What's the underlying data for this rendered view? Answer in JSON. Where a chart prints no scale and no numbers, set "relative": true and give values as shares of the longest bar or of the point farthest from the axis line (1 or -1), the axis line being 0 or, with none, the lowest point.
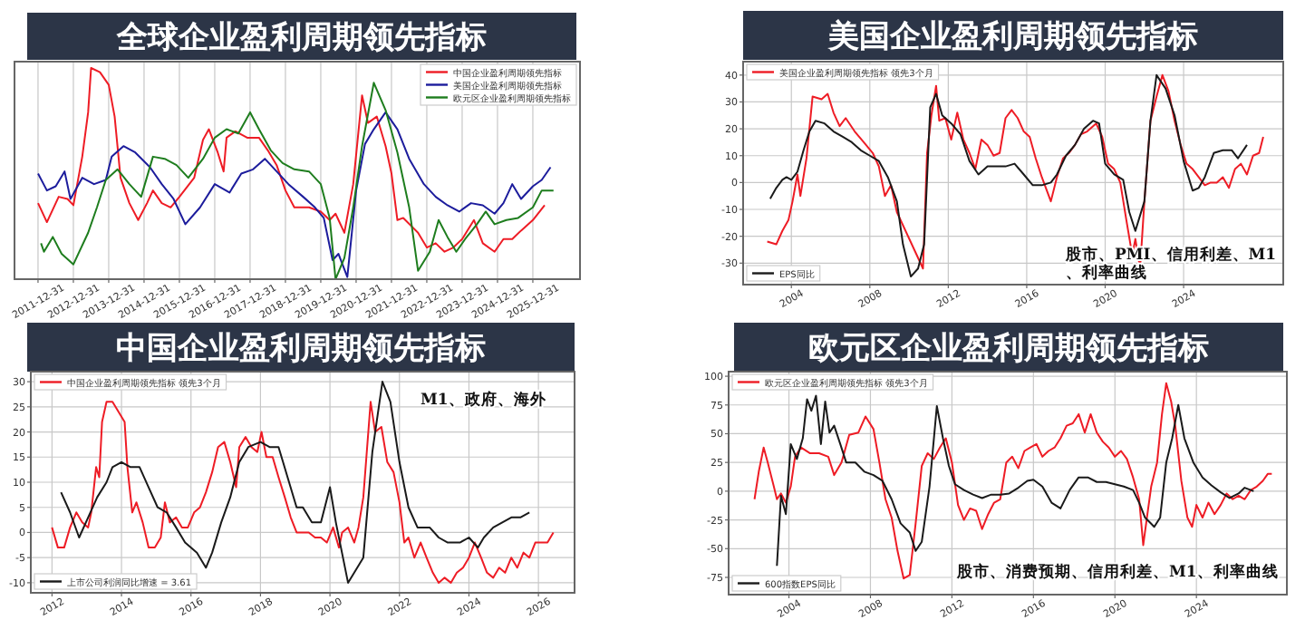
{
  "chart_data": [
    {
      "type": "line",
      "title": "全球企业盈利周期领先指标",
      "relative": true,
      "grid": "x",
      "legend": "top right",
      "xlim": [
        "2011-05",
        "2027-05"
      ],
      "xticks": [
        "2011-12-31",
        "2012-12-31",
        "2013-12-31",
        "2014-12-31",
        "2015-12-31",
        "2016-12-31",
        "2017-12-31",
        "2018-12-31",
        "2019-12-31",
        "2020-12-31",
        "2021-12-31",
        "2022-12-31",
        "2023-12-31",
        "2024-12-31",
        "2025-12-31"
      ],
      "series": [
        {
          "name": "中国企业盈利周期领先指标",
          "color": "#ee1c25",
          "x": [
            "2012-01",
            "2012-04",
            "2012-08",
            "2012-11",
            "2013-01",
            "2013-04",
            "2013-06",
            "2013-07",
            "2013-10",
            "2014-01",
            "2014-03",
            "2014-05",
            "2014-08",
            "2014-11",
            "2015-02",
            "2015-04",
            "2015-07",
            "2015-10",
            "2016-01",
            "2016-06",
            "2016-09",
            "2016-11",
            "2017-02",
            "2017-04",
            "2017-05",
            "2017-08",
            "2017-12",
            "2018-04",
            "2018-07",
            "2018-10",
            "2019-01",
            "2019-04",
            "2019-09",
            "2020-01",
            "2020-04",
            "2020-06",
            "2020-09",
            "2020-12",
            "2021-03",
            "2021-05",
            "2021-08",
            "2021-11",
            "2022-01",
            "2022-03",
            "2022-05",
            "2022-10",
            "2023-01",
            "2023-04",
            "2023-07",
            "2023-10",
            "2024-01",
            "2024-05",
            "2024-08",
            "2024-12",
            "2025-03",
            "2025-06",
            "2025-09",
            "2026-01",
            "2026-05"
          ],
          "values": [
            0.36,
            0.27,
            0.39,
            0.38,
            0.35,
            0.58,
            0.79,
            1.0,
            0.98,
            0.92,
            0.77,
            0.48,
            0.36,
            0.28,
            0.36,
            0.42,
            0.36,
            0.34,
            0.39,
            0.48,
            0.66,
            0.71,
            0.6,
            0.51,
            0.67,
            0.7,
            0.67,
            0.67,
            0.61,
            0.54,
            0.42,
            0.34,
            0.34,
            0.32,
            0.28,
            0.31,
            0.22,
            0.45,
            0.87,
            0.74,
            0.77,
            0.63,
            0.5,
            0.28,
            0.29,
            0.22,
            0.15,
            0.17,
            0.13,
            0.15,
            0.19,
            0.28,
            0.17,
            0.13,
            0.19,
            0.19,
            0.23,
            0.28,
            0.35
          ]
        },
        {
          "name": "美国企业盈利周期领先指标",
          "color": "#1c1c9c",
          "x": [
            "2012-01",
            "2012-04",
            "2012-07",
            "2012-10",
            "2012-12",
            "2013-04",
            "2013-08",
            "2013-12",
            "2014-02",
            "2014-06",
            "2014-10",
            "2015-03",
            "2015-07",
            "2015-11",
            "2016-03",
            "2016-08",
            "2017-01",
            "2017-06",
            "2017-10",
            "2018-02",
            "2018-06",
            "2018-10",
            "2019-02",
            "2019-07",
            "2019-11",
            "2020-02",
            "2020-05",
            "2020-07",
            "2020-10",
            "2021-01",
            "2021-04",
            "2021-07",
            "2021-11",
            "2022-03",
            "2022-07",
            "2022-12",
            "2023-04",
            "2023-08",
            "2023-12",
            "2024-04",
            "2024-08",
            "2024-12",
            "2025-03",
            "2025-06",
            "2025-09",
            "2026-01",
            "2026-04",
            "2026-07"
          ],
          "values": [
            0.5,
            0.42,
            0.44,
            0.51,
            0.38,
            0.48,
            0.45,
            0.47,
            0.58,
            0.63,
            0.6,
            0.53,
            0.45,
            0.38,
            0.26,
            0.34,
            0.45,
            0.41,
            0.5,
            0.52,
            0.57,
            0.51,
            0.45,
            0.39,
            0.34,
            0.29,
            0.09,
            0.12,
            0.01,
            0.42,
            0.64,
            0.71,
            0.79,
            0.71,
            0.57,
            0.45,
            0.39,
            0.35,
            0.32,
            0.36,
            0.35,
            0.31,
            0.36,
            0.45,
            0.38,
            0.44,
            0.47,
            0.53
          ]
        },
        {
          "name": "欧元区企业盈利周期领先指标",
          "color": "#1e7d1e",
          "x": [
            "2012-02",
            "2012-03",
            "2012-06",
            "2012-09",
            "2013-01",
            "2013-06",
            "2013-09",
            "2013-12",
            "2014-04",
            "2014-08",
            "2014-12",
            "2015-04",
            "2015-08",
            "2015-12",
            "2016-04",
            "2016-09",
            "2017-01",
            "2017-05",
            "2017-09",
            "2018-01",
            "2018-04",
            "2018-08",
            "2018-12",
            "2019-04",
            "2019-09",
            "2020-01",
            "2020-04",
            "2020-06",
            "2020-09",
            "2020-12",
            "2021-03",
            "2021-07",
            "2021-11",
            "2022-03",
            "2022-07",
            "2022-10",
            "2023-02",
            "2023-05",
            "2023-08",
            "2023-11",
            "2024-02",
            "2024-06",
            "2024-09",
            "2024-12",
            "2025-04",
            "2025-08",
            "2026-01",
            "2026-04",
            "2026-08"
          ],
          "values": [
            0.17,
            0.13,
            0.2,
            0.12,
            0.07,
            0.22,
            0.34,
            0.47,
            0.52,
            0.45,
            0.39,
            0.58,
            0.57,
            0.54,
            0.48,
            0.57,
            0.67,
            0.71,
            0.69,
            0.79,
            0.71,
            0.61,
            0.55,
            0.52,
            0.51,
            0.45,
            0.29,
            0.0,
            0.1,
            0.34,
            0.63,
            0.93,
            0.8,
            0.6,
            0.34,
            0.04,
            0.13,
            0.28,
            0.2,
            0.13,
            0.19,
            0.26,
            0.32,
            0.26,
            0.28,
            0.29,
            0.34,
            0.42,
            0.42
          ]
        }
      ]
    },
    {
      "type": "line",
      "title": "美国企业盈利周期领先指标",
      "grid": true,
      "legend": "left",
      "xlim": [
        2001.54,
        2029.08
      ],
      "ylim": [
        -38,
        45
      ],
      "xticks": [
        2004,
        2008,
        2012,
        2016,
        2020,
        2024
      ],
      "yticks": [
        -30,
        -20,
        -10,
        0,
        10,
        20,
        30,
        40
      ],
      "annotations": [
        "股市、PMI、信用利差、M1、利率曲线"
      ],
      "series": [
        {
          "name": "美国企业盈利周期领先指标 领先3个月",
          "color": "#ee1c25",
          "x": [
            2002.77,
            2003.23,
            2003.54,
            2003.85,
            2004.06,
            2004.31,
            2004.46,
            2004.77,
            2005.08,
            2005.54,
            2005.85,
            2006.15,
            2006.46,
            2006.77,
            2007.23,
            2007.69,
            2008.15,
            2008.46,
            2008.77,
            2009.08,
            2009.38,
            2010.71,
            2010.92,
            2011.14,
            2011.38,
            2011.54,
            2011.85,
            2012.15,
            2012.46,
            2012.77,
            2013.08,
            2013.38,
            2013.69,
            2014.0,
            2014.31,
            2014.62,
            2014.92,
            2015.23,
            2015.54,
            2015.85,
            2016.15,
            2016.46,
            2016.77,
            2017.23,
            2017.54,
            2017.85,
            2018.15,
            2018.46,
            2018.77,
            2019.08,
            2019.54,
            2019.85,
            2020.15,
            2020.46,
            2020.77,
            2021.08,
            2021.38,
            2021.54,
            2021.78,
            2022.0,
            2022.31,
            2022.62,
            2022.92,
            2023.23,
            2023.54,
            2023.85,
            2024.15,
            2024.46,
            2024.77,
            2025.08,
            2025.38,
            2025.69,
            2026.0,
            2026.31,
            2026.62,
            2026.92,
            2027.23,
            2027.54,
            2027.85,
            2028.06
          ],
          "values": [
            -22,
            -23,
            -18,
            -14,
            -7,
            3,
            -5,
            9,
            32,
            31,
            33,
            26,
            21,
            24,
            19,
            15,
            11,
            6,
            -5,
            -1,
            -11,
            -32,
            11,
            25,
            36,
            23,
            24,
            16,
            26,
            16,
            11,
            5,
            16,
            14,
            10,
            11,
            24,
            27,
            24,
            19,
            17,
            9,
            2,
            -7,
            2,
            9,
            11,
            14,
            18,
            19,
            22,
            17,
            7,
            5,
            0,
            -14,
            -27,
            -21,
            -32,
            -7,
            23,
            32,
            40,
            34,
            23,
            14,
            7,
            5,
            2,
            -1,
            0,
            0,
            2,
            -2,
            5,
            7,
            3,
            10,
            11,
            17
          ]
        },
        {
          "name": "EPS同比",
          "color": "#1a1a1a",
          "x": [
            2002.92,
            2003.23,
            2003.54,
            2003.75,
            2004.0,
            2004.31,
            2004.62,
            2004.92,
            2005.23,
            2005.69,
            2006.15,
            2006.62,
            2007.08,
            2007.54,
            2008.0,
            2008.46,
            2008.92,
            2009.38,
            2009.69,
            2010.09,
            2010.46,
            2010.77,
            2011.08,
            2011.38,
            2011.69,
            2012.15,
            2012.62,
            2013.08,
            2013.54,
            2014.0,
            2014.46,
            2014.92,
            2015.38,
            2015.85,
            2016.31,
            2016.77,
            2017.23,
            2017.54,
            2018.0,
            2018.46,
            2018.92,
            2019.38,
            2019.69,
            2020.0,
            2020.46,
            2020.92,
            2021.23,
            2021.54,
            2022.0,
            2022.31,
            2022.62,
            2023.08,
            2023.54,
            2024.0,
            2024.46,
            2024.77,
            2025.08,
            2025.54,
            2026.0,
            2026.46,
            2026.77,
            2027.23
          ],
          "values": [
            -6,
            -2,
            1,
            2,
            1,
            4,
            12,
            19,
            23,
            22,
            19,
            17,
            15,
            12,
            10,
            8,
            2,
            -7,
            -23,
            -35,
            -32,
            -23,
            28,
            33,
            25,
            22,
            18,
            8,
            3,
            6,
            6,
            6,
            7,
            3,
            -1,
            -1,
            0,
            3,
            10,
            14,
            20,
            23,
            22,
            7,
            3,
            1,
            -11,
            -18,
            -7,
            23,
            40,
            35,
            25,
            8,
            -3,
            -2,
            2,
            11,
            12,
            12,
            9,
            14
          ]
        }
      ]
    },
    {
      "type": "line",
      "title": "中国企业盈利周期领先指标",
      "grid": true,
      "legend": "left",
      "xlim": [
        2011.39,
        2027.04
      ],
      "ylim": [
        -12,
        32
      ],
      "xticks": [
        2012,
        2014,
        2016,
        2018,
        2020,
        2022,
        2024,
        2026
      ],
      "yticks": [
        -10,
        -5,
        0,
        5,
        10,
        15,
        20,
        25,
        30
      ],
      "annotations": [
        "M1、政府、海外"
      ],
      "series": [
        {
          "name": "中国企业盈利周期领先指标 领先3个月",
          "color": "#ee1c25",
          "x": [
            2012.0,
            2012.17,
            2012.35,
            2012.52,
            2012.7,
            2012.87,
            2013.04,
            2013.13,
            2013.27,
            2013.36,
            2013.44,
            2013.57,
            2013.74,
            2014.09,
            2014.17,
            2014.31,
            2014.43,
            2014.61,
            2014.78,
            2014.96,
            2015.13,
            2015.25,
            2015.39,
            2015.57,
            2015.74,
            2015.91,
            2016.09,
            2016.26,
            2016.43,
            2016.61,
            2016.78,
            2016.96,
            2017.13,
            2017.3,
            2017.39,
            2017.57,
            2017.74,
            2017.91,
            2018.03,
            2018.17,
            2018.35,
            2018.52,
            2018.7,
            2018.87,
            2019.04,
            2019.22,
            2019.39,
            2019.57,
            2019.74,
            2019.91,
            2020.09,
            2020.26,
            2020.35,
            2020.52,
            2020.7,
            2020.82,
            2020.96,
            2021.17,
            2021.3,
            2021.48,
            2021.65,
            2021.83,
            2022.0,
            2022.14,
            2022.26,
            2022.43,
            2022.61,
            2022.78,
            2022.96,
            2023.13,
            2023.3,
            2023.48,
            2023.65,
            2023.83,
            2024.0,
            2024.17,
            2024.35,
            2024.52,
            2024.7,
            2024.87,
            2025.04,
            2025.22,
            2025.39,
            2025.57,
            2025.74,
            2025.91,
            2026.09,
            2026.26,
            2026.43
          ],
          "values": [
            1,
            -3,
            -3,
            1,
            4,
            2,
            1,
            4,
            13,
            11,
            22,
            26,
            26,
            22,
            13,
            4,
            6,
            2,
            -3,
            -3,
            -1,
            6,
            2,
            3,
            1,
            1,
            4,
            5,
            8,
            12,
            17,
            18,
            14,
            9,
            17,
            19,
            17,
            16,
            20,
            15,
            15,
            11,
            7,
            3,
            0,
            0,
            0,
            -1,
            -1,
            -2,
            1,
            -3,
            0,
            1,
            -2,
            1,
            7,
            26,
            20,
            21,
            14,
            12,
            6,
            -2,
            -1,
            -5,
            -2,
            -5,
            -8,
            -10,
            -9,
            -10,
            -8,
            -7,
            -5,
            -2,
            -5,
            -8,
            -9,
            -7,
            -8,
            -5,
            -7,
            -4,
            -5,
            -2,
            -2,
            -2,
            0
          ]
        },
        {
          "name": "上市公司利润同比增速 = 3.61",
          "color": "#1a1a1a",
          "x": [
            2012.26,
            2012.52,
            2012.78,
            2013.04,
            2013.3,
            2013.57,
            2013.74,
            2014.0,
            2014.26,
            2014.52,
            2014.78,
            2015.04,
            2015.3,
            2015.57,
            2015.83,
            2016.17,
            2016.43,
            2016.61,
            2016.87,
            2017.13,
            2017.39,
            2017.65,
            2018.0,
            2018.26,
            2018.52,
            2018.78,
            2019.04,
            2019.22,
            2019.48,
            2019.74,
            2020.0,
            2020.17,
            2020.52,
            2020.96,
            2021.22,
            2021.51,
            2021.74,
            2022.0,
            2022.26,
            2022.52,
            2022.87,
            2023.13,
            2023.39,
            2023.74,
            2024.0,
            2024.26,
            2024.43,
            2024.7,
            2024.96,
            2025.22,
            2025.48,
            2025.74
          ],
          "values": [
            8,
            4,
            -1,
            3,
            7,
            10,
            13,
            14,
            13,
            13,
            9,
            5,
            4,
            1,
            -2,
            -4,
            -7,
            -4,
            2,
            7,
            14,
            17,
            18,
            17,
            17,
            11,
            5,
            5,
            2,
            2,
            9,
            2,
            -10,
            -5,
            16,
            30,
            26,
            14,
            5,
            1,
            1,
            -1,
            -2,
            -2,
            -1,
            -3,
            -1,
            1,
            2,
            3,
            3,
            4
          ]
        }
      ]
    },
    {
      "type": "line",
      "title": "欧元区企业盈利周期领先指标",
      "grid": true,
      "legend": "left",
      "xlim": [
        2001.04,
        2028.44
      ],
      "ylim": [
        -90,
        104
      ],
      "xticks": [
        2004,
        2008,
        2012,
        2016,
        2020,
        2024
      ],
      "yticks": [
        -75,
        -50,
        -25,
        0,
        25,
        50,
        75,
        100
      ],
      "annotations": [
        "股市、消费预期、信用利差、M1、利率曲线"
      ],
      "series": [
        {
          "name": "欧元区企业盈利周期领先指标 领先3个月",
          "color": "#ee1c25",
          "x": [
            2002.31,
            2002.52,
            2002.76,
            2002.96,
            2003.26,
            2003.41,
            2003.61,
            2003.85,
            2004.09,
            2004.3,
            2004.59,
            2005.04,
            2005.48,
            2005.93,
            2006.22,
            2006.58,
            2006.96,
            2007.41,
            2007.76,
            2008.15,
            2008.44,
            2008.74,
            2009.04,
            2009.33,
            2009.63,
            2009.93,
            2010.22,
            2010.52,
            2010.81,
            2011.11,
            2011.41,
            2011.7,
            2012.0,
            2012.3,
            2012.59,
            2012.89,
            2013.19,
            2013.48,
            2013.78,
            2014.07,
            2014.37,
            2014.67,
            2014.96,
            2015.26,
            2015.56,
            2015.85,
            2016.15,
            2016.44,
            2016.74,
            2017.04,
            2017.33,
            2017.63,
            2017.93,
            2018.22,
            2018.52,
            2018.81,
            2019.11,
            2019.41,
            2019.7,
            2020.0,
            2020.3,
            2020.59,
            2020.89,
            2021.19,
            2021.39,
            2021.57,
            2021.78,
            2022.07,
            2022.31,
            2022.52,
            2022.76,
            2022.96,
            2023.26,
            2023.56,
            2023.79,
            2024.0,
            2024.3,
            2024.59,
            2024.89,
            2025.19,
            2025.48,
            2025.78,
            2026.07,
            2026.37,
            2026.67,
            2026.96,
            2027.26,
            2027.5,
            2027.7
          ],
          "values": [
            -7,
            17,
            38,
            25,
            4,
            -7,
            -2,
            -10,
            4,
            30,
            38,
            33,
            33,
            30,
            14,
            25,
            49,
            51,
            65,
            54,
            25,
            -7,
            -23,
            -52,
            -76,
            -73,
            -28,
            22,
            33,
            28,
            38,
            46,
            25,
            -12,
            -25,
            -15,
            -17,
            -33,
            -20,
            -10,
            -7,
            25,
            30,
            20,
            35,
            38,
            41,
            30,
            35,
            38,
            46,
            57,
            59,
            67,
            51,
            67,
            51,
            43,
            38,
            30,
            35,
            28,
            12,
            -7,
            -47,
            -23,
            4,
            25,
            67,
            94,
            78,
            57,
            9,
            -23,
            -31,
            -12,
            -23,
            -10,
            -20,
            -12,
            -2,
            -7,
            -4,
            -7,
            1,
            4,
            9,
            15,
            15
          ]
        },
        {
          "name": "600指数EPS同比",
          "color": "#1a1a1a",
          "x": [
            2003.41,
            2003.61,
            2003.85,
            2004.09,
            2004.39,
            2004.68,
            2004.89,
            2005.1,
            2005.33,
            2005.57,
            2005.78,
            2005.99,
            2006.22,
            2006.52,
            2006.81,
            2007.26,
            2007.7,
            2008.15,
            2008.59,
            2009.04,
            2009.48,
            2009.93,
            2010.22,
            2010.52,
            2010.9,
            2011.26,
            2011.56,
            2011.85,
            2012.15,
            2012.59,
            2013.04,
            2013.48,
            2013.93,
            2014.37,
            2014.81,
            2015.26,
            2015.7,
            2016.0,
            2016.44,
            2016.89,
            2017.33,
            2017.78,
            2018.22,
            2018.67,
            2019.11,
            2019.56,
            2020.0,
            2020.44,
            2020.89,
            2021.19,
            2021.48,
            2021.93,
            2022.22,
            2022.52,
            2022.81,
            2023.11,
            2023.41,
            2023.85,
            2024.3,
            2024.74,
            2025.19,
            2025.63,
            2026.07,
            2026.37,
            2026.81
          ],
          "values": [
            -65,
            -4,
            -20,
            41,
            28,
            46,
            80,
            70,
            83,
            41,
            78,
            51,
            57,
            41,
            25,
            25,
            17,
            14,
            9,
            -7,
            -28,
            -36,
            -52,
            -44,
            4,
            74,
            46,
            22,
            6,
            1,
            -3,
            -6,
            -3,
            -3,
            -2,
            3,
            9,
            10,
            4,
            -10,
            -15,
            1,
            12,
            12,
            8,
            8,
            6,
            4,
            1,
            -10,
            -23,
            -31,
            -23,
            25,
            46,
            75,
            46,
            25,
            12,
            5,
            -1,
            -6,
            -2,
            3,
            0
          ]
        }
      ]
    }
  ]
}
